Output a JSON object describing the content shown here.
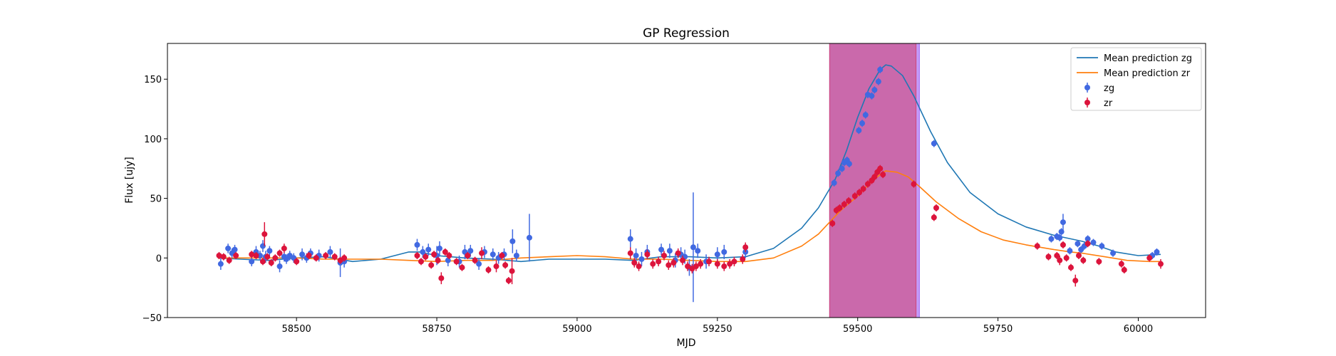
{
  "chart_data": {
    "type": "scatter",
    "title": "GP Regression",
    "xlabel": "MJD",
    "ylabel": "Flux [ujy]",
    "xlim": [
      58270,
      60120
    ],
    "ylim": [
      -50,
      180
    ],
    "x_ticks": [
      58500,
      58750,
      59000,
      59250,
      59500,
      59750,
      60000
    ],
    "x_tick_labels": [
      "58500",
      "58750",
      "59000",
      "59250",
      "59500",
      "59750",
      "60000"
    ],
    "y_ticks": [
      -50,
      0,
      50,
      100,
      150
    ],
    "y_tick_labels": [
      "−50",
      "0",
      "50",
      "100",
      "150"
    ],
    "grid": false,
    "legend_position": "upper-right",
    "shaded_regions": [
      {
        "x0": 59450,
        "x1": 59610,
        "color": "#9b59f5",
        "alpha": 0.6
      },
      {
        "x0": 59450,
        "x1": 59604,
        "color": "#d0406c",
        "alpha": 0.55
      }
    ],
    "series": [
      {
        "name": "Mean prediction zg",
        "kind": "line",
        "color": "#1f77b4",
        "x": [
          58360,
          58400,
          58450,
          58500,
          58550,
          58600,
          58650,
          58700,
          58720,
          58750,
          58800,
          58850,
          58900,
          58950,
          59000,
          59050,
          59100,
          59150,
          59200,
          59250,
          59300,
          59350,
          59400,
          59430,
          59460,
          59480,
          59500,
          59520,
          59540,
          59550,
          59560,
          59580,
          59600,
          59630,
          59660,
          59700,
          59750,
          59800,
          59850,
          59880,
          59900,
          59930,
          59960,
          60000,
          60040
        ],
        "y": [
          0,
          -1,
          -2,
          0,
          1,
          -3,
          -1,
          5,
          5,
          2,
          0,
          -1,
          -3,
          -1,
          -1,
          -1,
          -2,
          1,
          1,
          0,
          1,
          8,
          25,
          42,
          66,
          90,
          118,
          142,
          158,
          162,
          161,
          153,
          136,
          106,
          80,
          55,
          37,
          26,
          19,
          16,
          14,
          10,
          5,
          2,
          3
        ]
      },
      {
        "name": "Mean prediction zr",
        "kind": "line",
        "color": "#ff7f0e",
        "x": [
          58360,
          58400,
          58450,
          58500,
          58550,
          58600,
          58650,
          58700,
          58750,
          58800,
          58850,
          58900,
          58950,
          59000,
          59050,
          59100,
          59150,
          59200,
          59250,
          59300,
          59350,
          59400,
          59430,
          59450,
          59470,
          59500,
          59520,
          59540,
          59550,
          59570,
          59590,
          59610,
          59640,
          59680,
          59720,
          59760,
          59800,
          59850,
          59880,
          59900,
          59940,
          59980,
          60020,
          60040
        ],
        "y": [
          0,
          0,
          0,
          0,
          -1,
          -1,
          -1,
          -2,
          -3,
          -2,
          -2,
          0,
          1,
          2,
          1,
          -1,
          -1,
          -2,
          -3,
          -3,
          0,
          10,
          20,
          30,
          40,
          52,
          62,
          70,
          73,
          72,
          68,
          60,
          47,
          33,
          22,
          15,
          11,
          7,
          5,
          4,
          1,
          -2,
          -3,
          -3
        ]
      },
      {
        "name": "zg",
        "kind": "errorbar",
        "color": "#4169e1",
        "x": [
          58365,
          58378,
          58385,
          58390,
          58420,
          58428,
          58435,
          58440,
          58445,
          58452,
          58470,
          58478,
          58482,
          58488,
          58495,
          58510,
          58518,
          58525,
          58540,
          58560,
          58578,
          58585,
          58715,
          58725,
          58735,
          58750,
          58755,
          58770,
          58790,
          58800,
          58810,
          58825,
          58835,
          58850,
          58860,
          58870,
          58885,
          58892,
          58915,
          59095,
          59105,
          59115,
          59125,
          59150,
          59165,
          59175,
          59185,
          59192,
          59200,
          59207,
          59215,
          59230,
          59250,
          59262,
          59300,
          59458,
          59465,
          59472,
          59476,
          59481,
          59485,
          59502,
          59508,
          59514,
          59518,
          59525,
          59530,
          59537,
          59540,
          59636,
          59845,
          59855,
          59860,
          59863,
          59866,
          59878,
          59892,
          59898,
          59904,
          59910,
          59920,
          59935,
          59955,
          60025,
          60033
        ],
        "y": [
          -5,
          8,
          4,
          7,
          -3,
          5,
          2,
          10,
          1,
          6,
          -7,
          1,
          -1,
          2,
          0,
          3,
          0,
          4,
          2,
          5,
          -4,
          -3,
          11,
          5,
          7,
          2,
          8,
          -2,
          -3,
          5,
          6,
          -5,
          5,
          3,
          0,
          3,
          14,
          2,
          17,
          16,
          2,
          -1,
          5,
          7,
          6,
          -2,
          3,
          1,
          -8,
          9,
          6,
          -3,
          3,
          5,
          5,
          63,
          71,
          75,
          80,
          82,
          79,
          107,
          113,
          120,
          137,
          136,
          141,
          148,
          158,
          96,
          16,
          18,
          17,
          22,
          30,
          6,
          12,
          7,
          10,
          16,
          13,
          10,
          4,
          2,
          5
        ],
        "err": [
          5,
          4,
          4,
          4,
          4,
          5,
          4,
          5,
          5,
          4,
          5,
          4,
          4,
          4,
          4,
          5,
          4,
          4,
          5,
          5,
          12,
          5,
          5,
          5,
          5,
          8,
          6,
          5,
          5,
          6,
          5,
          5,
          5,
          5,
          5,
          5,
          10,
          5,
          20,
          8,
          6,
          6,
          6,
          5,
          6,
          6,
          6,
          6,
          7,
          46,
          6,
          6,
          6,
          6,
          5,
          3,
          3,
          3,
          3,
          3,
          3,
          3,
          3,
          3,
          3,
          3,
          3,
          3,
          3,
          3,
          3,
          3,
          3,
          3,
          7,
          3,
          3,
          3,
          3,
          3,
          3,
          3,
          3,
          3,
          3
        ]
      },
      {
        "name": "zr",
        "kind": "errorbar",
        "color": "#dc143c",
        "x": [
          58362,
          58370,
          58380,
          58392,
          58420,
          58428,
          58440,
          58443,
          58448,
          58455,
          58462,
          58470,
          58478,
          58500,
          58522,
          58535,
          58552,
          58568,
          58578,
          58585,
          58715,
          58722,
          58730,
          58740,
          58745,
          58752,
          58758,
          58765,
          58772,
          58785,
          58795,
          58805,
          58818,
          58830,
          58842,
          58856,
          58866,
          58872,
          58878,
          58884,
          59095,
          59102,
          59110,
          59125,
          59135,
          59145,
          59155,
          59163,
          59172,
          59180,
          59188,
          59197,
          59205,
          59212,
          59220,
          59235,
          59250,
          59262,
          59272,
          59280,
          59295,
          59300,
          59455,
          59462,
          59468,
          59476,
          59484,
          59495,
          59503,
          59510,
          59518,
          59525,
          59530,
          59535,
          59540,
          59545,
          59600,
          59636,
          59640,
          59820,
          59840,
          59855,
          59860,
          59866,
          59872,
          59880,
          59888,
          59894,
          59902,
          59910,
          59930,
          59970,
          59975,
          60020,
          60040
        ],
        "y": [
          2,
          1,
          -2,
          2,
          3,
          2,
          -3,
          20,
          1,
          -4,
          0,
          4,
          8,
          -3,
          2,
          0,
          2,
          1,
          -2,
          0,
          2,
          -3,
          1,
          -6,
          3,
          -2,
          -17,
          5,
          2,
          -3,
          -8,
          2,
          -2,
          4,
          -10,
          -7,
          2,
          -6,
          -19,
          -11,
          4,
          -4,
          -7,
          3,
          -5,
          -3,
          2,
          -6,
          -4,
          4,
          -2,
          -7,
          -9,
          -7,
          -5,
          -3,
          -5,
          -7,
          -5,
          -3,
          -1,
          9,
          29,
          40,
          42,
          45,
          48,
          52,
          55,
          58,
          62,
          65,
          68,
          72,
          75,
          70,
          62,
          34,
          42,
          10,
          1,
          2,
          -2,
          11,
          0,
          -8,
          -19,
          2,
          -2,
          12,
          -3,
          -5,
          -10,
          0,
          -5
        ],
        "err": [
          3,
          3,
          3,
          3,
          3,
          3,
          3,
          10,
          3,
          3,
          3,
          3,
          4,
          3,
          3,
          3,
          3,
          3,
          3,
          3,
          3,
          3,
          3,
          3,
          3,
          3,
          5,
          3,
          3,
          3,
          3,
          3,
          3,
          5,
          3,
          5,
          3,
          3,
          3,
          11,
          5,
          4,
          4,
          4,
          4,
          4,
          4,
          4,
          4,
          4,
          4,
          4,
          4,
          4,
          4,
          4,
          4,
          4,
          4,
          4,
          4,
          4,
          3,
          3,
          3,
          3,
          3,
          3,
          3,
          3,
          3,
          3,
          3,
          3,
          3,
          3,
          3,
          3,
          3,
          3,
          3,
          3,
          4,
          3,
          3,
          3,
          5,
          3,
          3,
          3,
          3,
          3,
          3,
          3,
          4
        ]
      }
    ]
  }
}
